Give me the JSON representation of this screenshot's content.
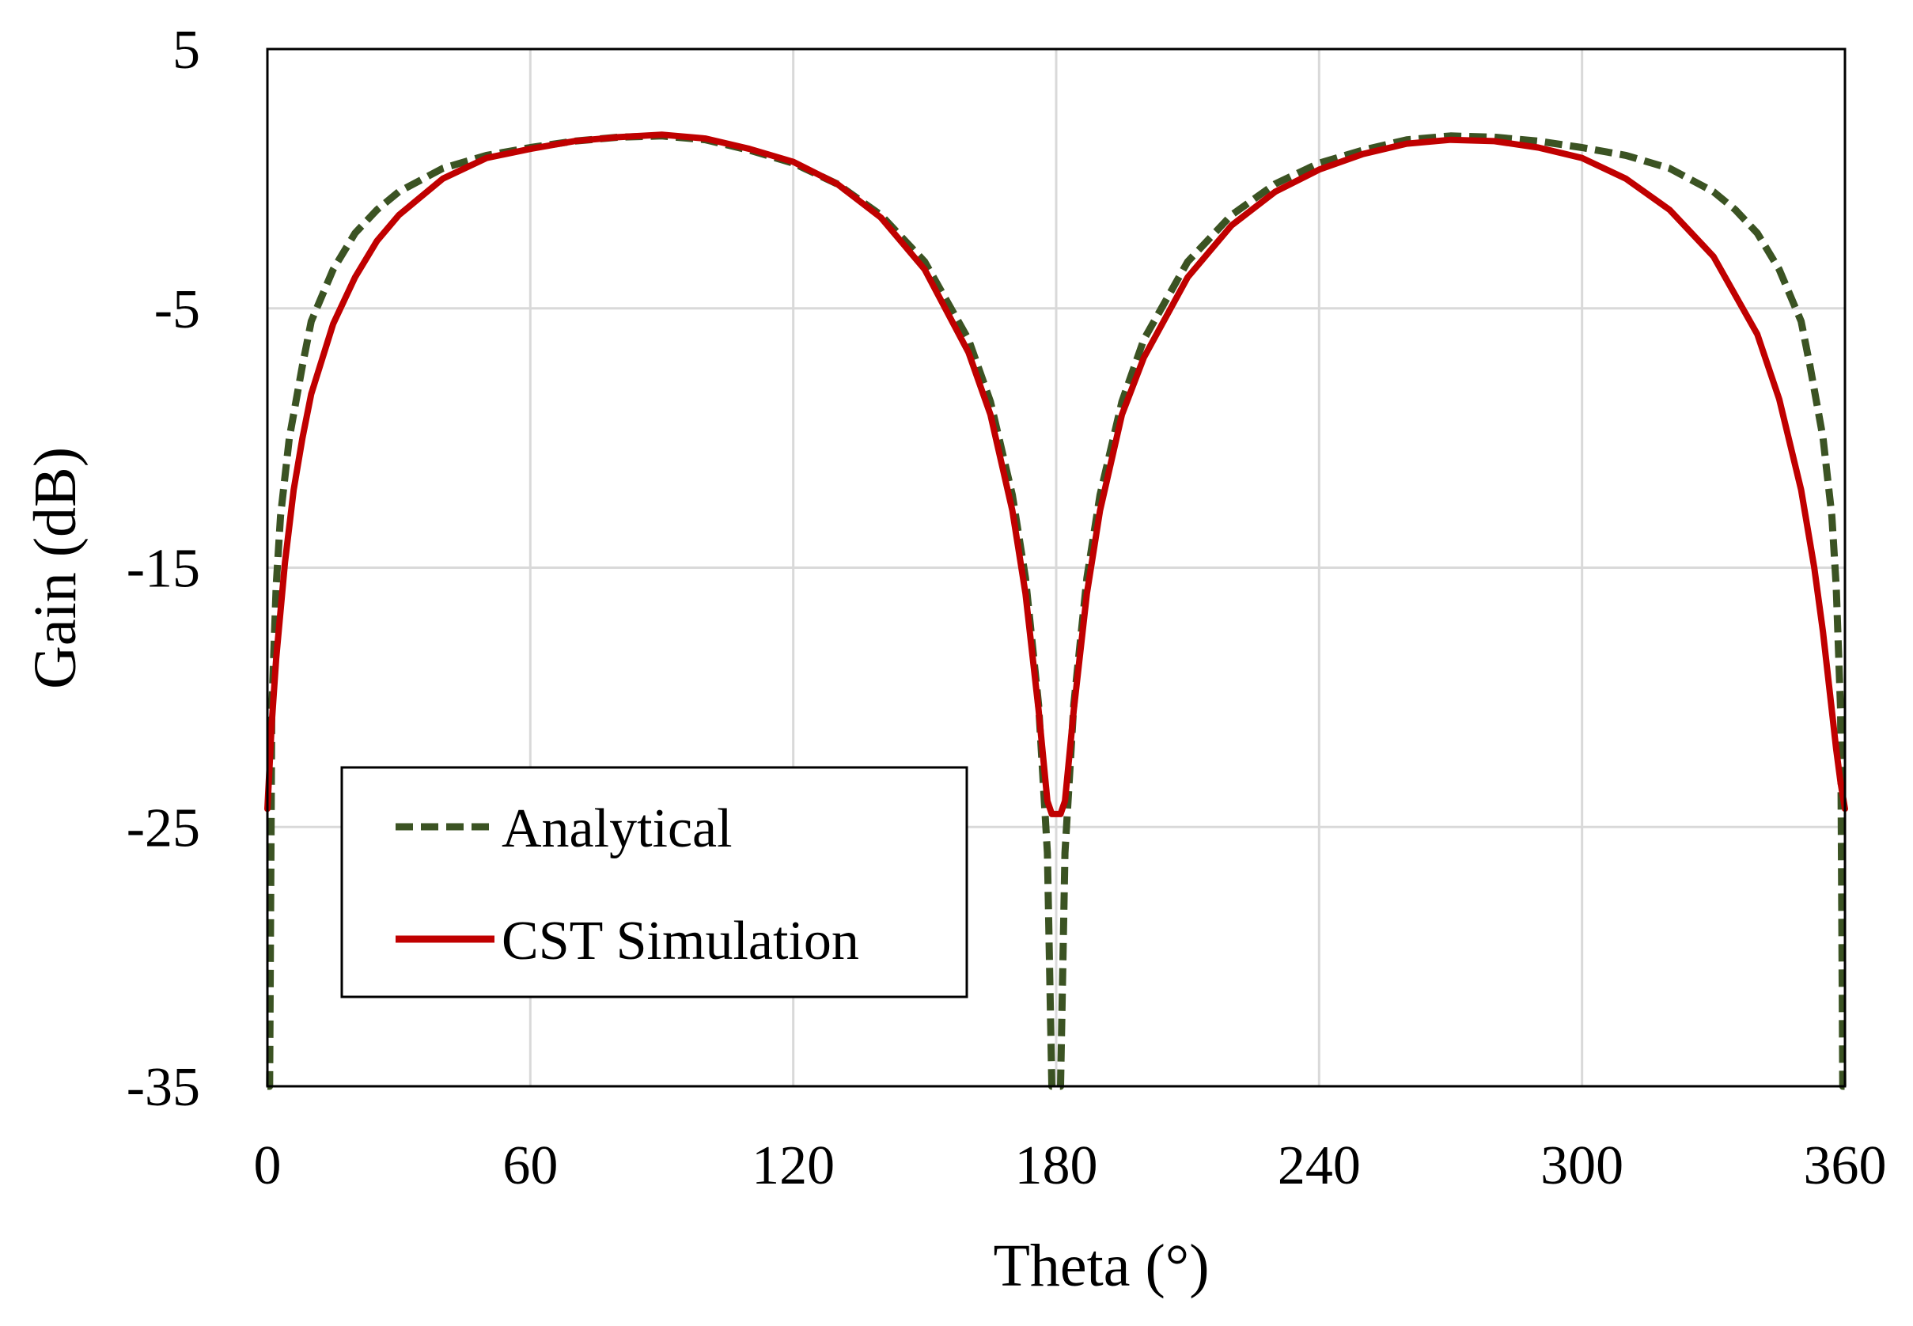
{
  "chart_data": {
    "type": "line",
    "title": "",
    "xlabel": "Theta (°)",
    "ylabel": "Gain (dB)",
    "xlim": [
      0,
      360
    ],
    "ylim": [
      -35,
      5
    ],
    "xticks": [
      "0",
      "60",
      "120",
      "180",
      "240",
      "300",
      "360"
    ],
    "yticks": [
      "5",
      "-5",
      "-15",
      "-25",
      "-35"
    ],
    "grid": true,
    "legend_position": "bottom-left",
    "series": [
      {
        "name": "Analytical",
        "style": "dashed",
        "color": "#3b5323",
        "points": [
          [
            0,
            -35
          ],
          [
            0.5,
            -35
          ],
          [
            1,
            -20.5
          ],
          [
            2,
            -15.7
          ],
          [
            3,
            -13
          ],
          [
            5,
            -10
          ],
          [
            8,
            -7.2
          ],
          [
            10,
            -5.5
          ],
          [
            15,
            -3.5
          ],
          [
            20,
            -2.1
          ],
          [
            25,
            -1.2
          ],
          [
            30,
            -0.5
          ],
          [
            40,
            0.4
          ],
          [
            50,
            0.9
          ],
          [
            60,
            1.2
          ],
          [
            70,
            1.45
          ],
          [
            80,
            1.6
          ],
          [
            90,
            1.65
          ],
          [
            100,
            1.5
          ],
          [
            110,
            1.1
          ],
          [
            120,
            0.6
          ],
          [
            130,
            -0.2
          ],
          [
            140,
            -1.4
          ],
          [
            150,
            -3.2
          ],
          [
            160,
            -6.2
          ],
          [
            165,
            -8.6
          ],
          [
            170,
            -12.2
          ],
          [
            173,
            -15.4
          ],
          [
            176,
            -20.3
          ],
          [
            178,
            -26
          ],
          [
            179,
            -35
          ],
          [
            180,
            -35
          ],
          [
            181,
            -35
          ],
          [
            182,
            -26
          ],
          [
            184,
            -20.3
          ],
          [
            187,
            -15.4
          ],
          [
            190,
            -12.2
          ],
          [
            195,
            -8.6
          ],
          [
            200,
            -6.2
          ],
          [
            210,
            -3.2
          ],
          [
            220,
            -1.4
          ],
          [
            230,
            -0.2
          ],
          [
            240,
            0.6
          ],
          [
            250,
            1.1
          ],
          [
            260,
            1.5
          ],
          [
            270,
            1.65
          ],
          [
            280,
            1.6
          ],
          [
            290,
            1.45
          ],
          [
            300,
            1.2
          ],
          [
            310,
            0.9
          ],
          [
            320,
            0.4
          ],
          [
            330,
            -0.5
          ],
          [
            335,
            -1.2
          ],
          [
            340,
            -2.1
          ],
          [
            345,
            -3.5
          ],
          [
            350,
            -5.5
          ],
          [
            352,
            -7.2
          ],
          [
            355,
            -10
          ],
          [
            357,
            -13
          ],
          [
            358,
            -15.7
          ],
          [
            359,
            -20.5
          ],
          [
            359.5,
            -35
          ],
          [
            360,
            -35
          ]
        ]
      },
      {
        "name": "CST Simulation",
        "style": "solid",
        "color": "#c00000",
        "points": [
          [
            0,
            -24.3
          ],
          [
            1,
            -21
          ],
          [
            2,
            -18.5
          ],
          [
            4,
            -14.8
          ],
          [
            6,
            -12
          ],
          [
            8,
            -10
          ],
          [
            10,
            -8.3
          ],
          [
            15,
            -5.6
          ],
          [
            20,
            -3.8
          ],
          [
            25,
            -2.4
          ],
          [
            30,
            -1.4
          ],
          [
            40,
            0
          ],
          [
            50,
            0.8
          ],
          [
            60,
            1.15
          ],
          [
            70,
            1.45
          ],
          [
            80,
            1.6
          ],
          [
            90,
            1.7
          ],
          [
            100,
            1.55
          ],
          [
            110,
            1.15
          ],
          [
            120,
            0.65
          ],
          [
            130,
            -0.2
          ],
          [
            140,
            -1.5
          ],
          [
            150,
            -3.5
          ],
          [
            160,
            -6.7
          ],
          [
            165,
            -9.1
          ],
          [
            170,
            -12.8
          ],
          [
            173,
            -16
          ],
          [
            176,
            -20.5
          ],
          [
            178,
            -24
          ],
          [
            179,
            -24.5
          ],
          [
            180,
            -24.5
          ],
          [
            181,
            -24.5
          ],
          [
            182,
            -24
          ],
          [
            184,
            -20.5
          ],
          [
            187,
            -16
          ],
          [
            190,
            -12.8
          ],
          [
            195,
            -9.1
          ],
          [
            200,
            -6.9
          ],
          [
            210,
            -3.8
          ],
          [
            220,
            -1.8
          ],
          [
            230,
            -0.5
          ],
          [
            240,
            0.35
          ],
          [
            250,
            0.95
          ],
          [
            260,
            1.35
          ],
          [
            270,
            1.5
          ],
          [
            280,
            1.45
          ],
          [
            290,
            1.2
          ],
          [
            300,
            0.8
          ],
          [
            310,
            0
          ],
          [
            320,
            -1.2
          ],
          [
            330,
            -3
          ],
          [
            340,
            -6
          ],
          [
            345,
            -8.5
          ],
          [
            350,
            -12
          ],
          [
            353,
            -15
          ],
          [
            355,
            -17.5
          ],
          [
            357,
            -20.5
          ],
          [
            358,
            -22
          ],
          [
            359,
            -23.3
          ],
          [
            360,
            -24.3
          ]
        ]
      }
    ]
  }
}
